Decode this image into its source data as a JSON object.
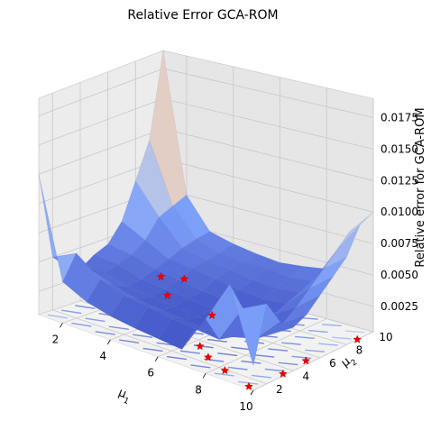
{
  "chart_data": {
    "type": "surface3d",
    "title": "Relative Error GCA-ROM",
    "xlabel": "μ1",
    "ylabel": "μ2",
    "zlabel": "Relative error for GCA-ROM",
    "xticks": [
      2,
      4,
      6,
      8,
      10
    ],
    "yticks": [
      2,
      4,
      6,
      8,
      10
    ],
    "zticks": [
      "0.0025",
      "0.0050",
      "0.0075",
      "0.0100",
      "0.0125",
      "0.0150",
      "0.0175"
    ],
    "xlim": [
      1,
      10
    ],
    "ylim": [
      1,
      10
    ],
    "zlim": [
      0.0005,
      0.019
    ],
    "colormap": "coolwarm",
    "grid": true,
    "mu1": [
      1,
      2,
      3,
      4,
      5,
      6,
      7,
      8,
      9,
      10
    ],
    "mu2": [
      1,
      2,
      3,
      4,
      5,
      6,
      7,
      8,
      9,
      10
    ],
    "z": [
      [
        0.0125,
        0.005,
        0.0038,
        0.0032,
        0.004,
        0.0045,
        0.006,
        0.009,
        0.012,
        0.019
      ],
      [
        0.004,
        0.006,
        0.0042,
        0.0035,
        0.0038,
        0.0042,
        0.005,
        0.0065,
        0.007,
        0.0075
      ],
      [
        0.003,
        0.0045,
        0.0035,
        0.003,
        0.0032,
        0.0036,
        0.004,
        0.0045,
        0.0048,
        0.005
      ],
      [
        0.0025,
        0.0038,
        0.003,
        0.0028,
        0.003,
        0.0033,
        0.0038,
        0.004,
        0.0042,
        0.0045
      ],
      [
        0.0022,
        0.0035,
        0.0028,
        0.0026,
        0.0028,
        0.003,
        0.0035,
        0.0038,
        0.004,
        0.0042
      ],
      [
        0.002,
        0.0032,
        0.0026,
        0.0024,
        0.0026,
        0.0028,
        0.0032,
        0.0035,
        0.004,
        0.004
      ],
      [
        0.0018,
        0.003,
        0.0024,
        0.0022,
        0.0024,
        0.0026,
        0.003,
        0.0034,
        0.0038,
        0.0042
      ],
      [
        0.005,
        0.0028,
        0.0025,
        0.0023,
        0.0025,
        0.0028,
        0.0032,
        0.0036,
        0.004,
        0.0045
      ],
      [
        0.0085,
        0.006,
        0.003,
        0.0028,
        0.0032,
        0.004,
        0.005,
        0.006,
        0.007,
        0.008
      ],
      [
        0.0025,
        0.007,
        0.005,
        0.004,
        0.0045,
        0.0055,
        0.0065,
        0.0075,
        0.0095,
        0.01
      ]
    ],
    "markers": {
      "style": "red-star",
      "points": [
        {
          "mu1": 1.2,
          "mu2": 9.5
        },
        {
          "mu1": 1.9,
          "mu2": 10.0
        },
        {
          "mu1": 2.6,
          "mu2": 7.6
        },
        {
          "mu1": 4.9,
          "mu2": 6.9
        },
        {
          "mu1": 6.4,
          "mu2": 3.4
        },
        {
          "mu1": 7.2,
          "mu2": 2.6
        },
        {
          "mu1": 8.3,
          "mu2": 1.9
        },
        {
          "mu1": 9.7,
          "mu2": 1.2
        },
        {
          "mu1": 9.9,
          "mu2": 3.4
        },
        {
          "mu1": 9.8,
          "mu2": 5.3
        },
        {
          "mu1": 10.0,
          "mu2": 8.8
        }
      ]
    }
  }
}
